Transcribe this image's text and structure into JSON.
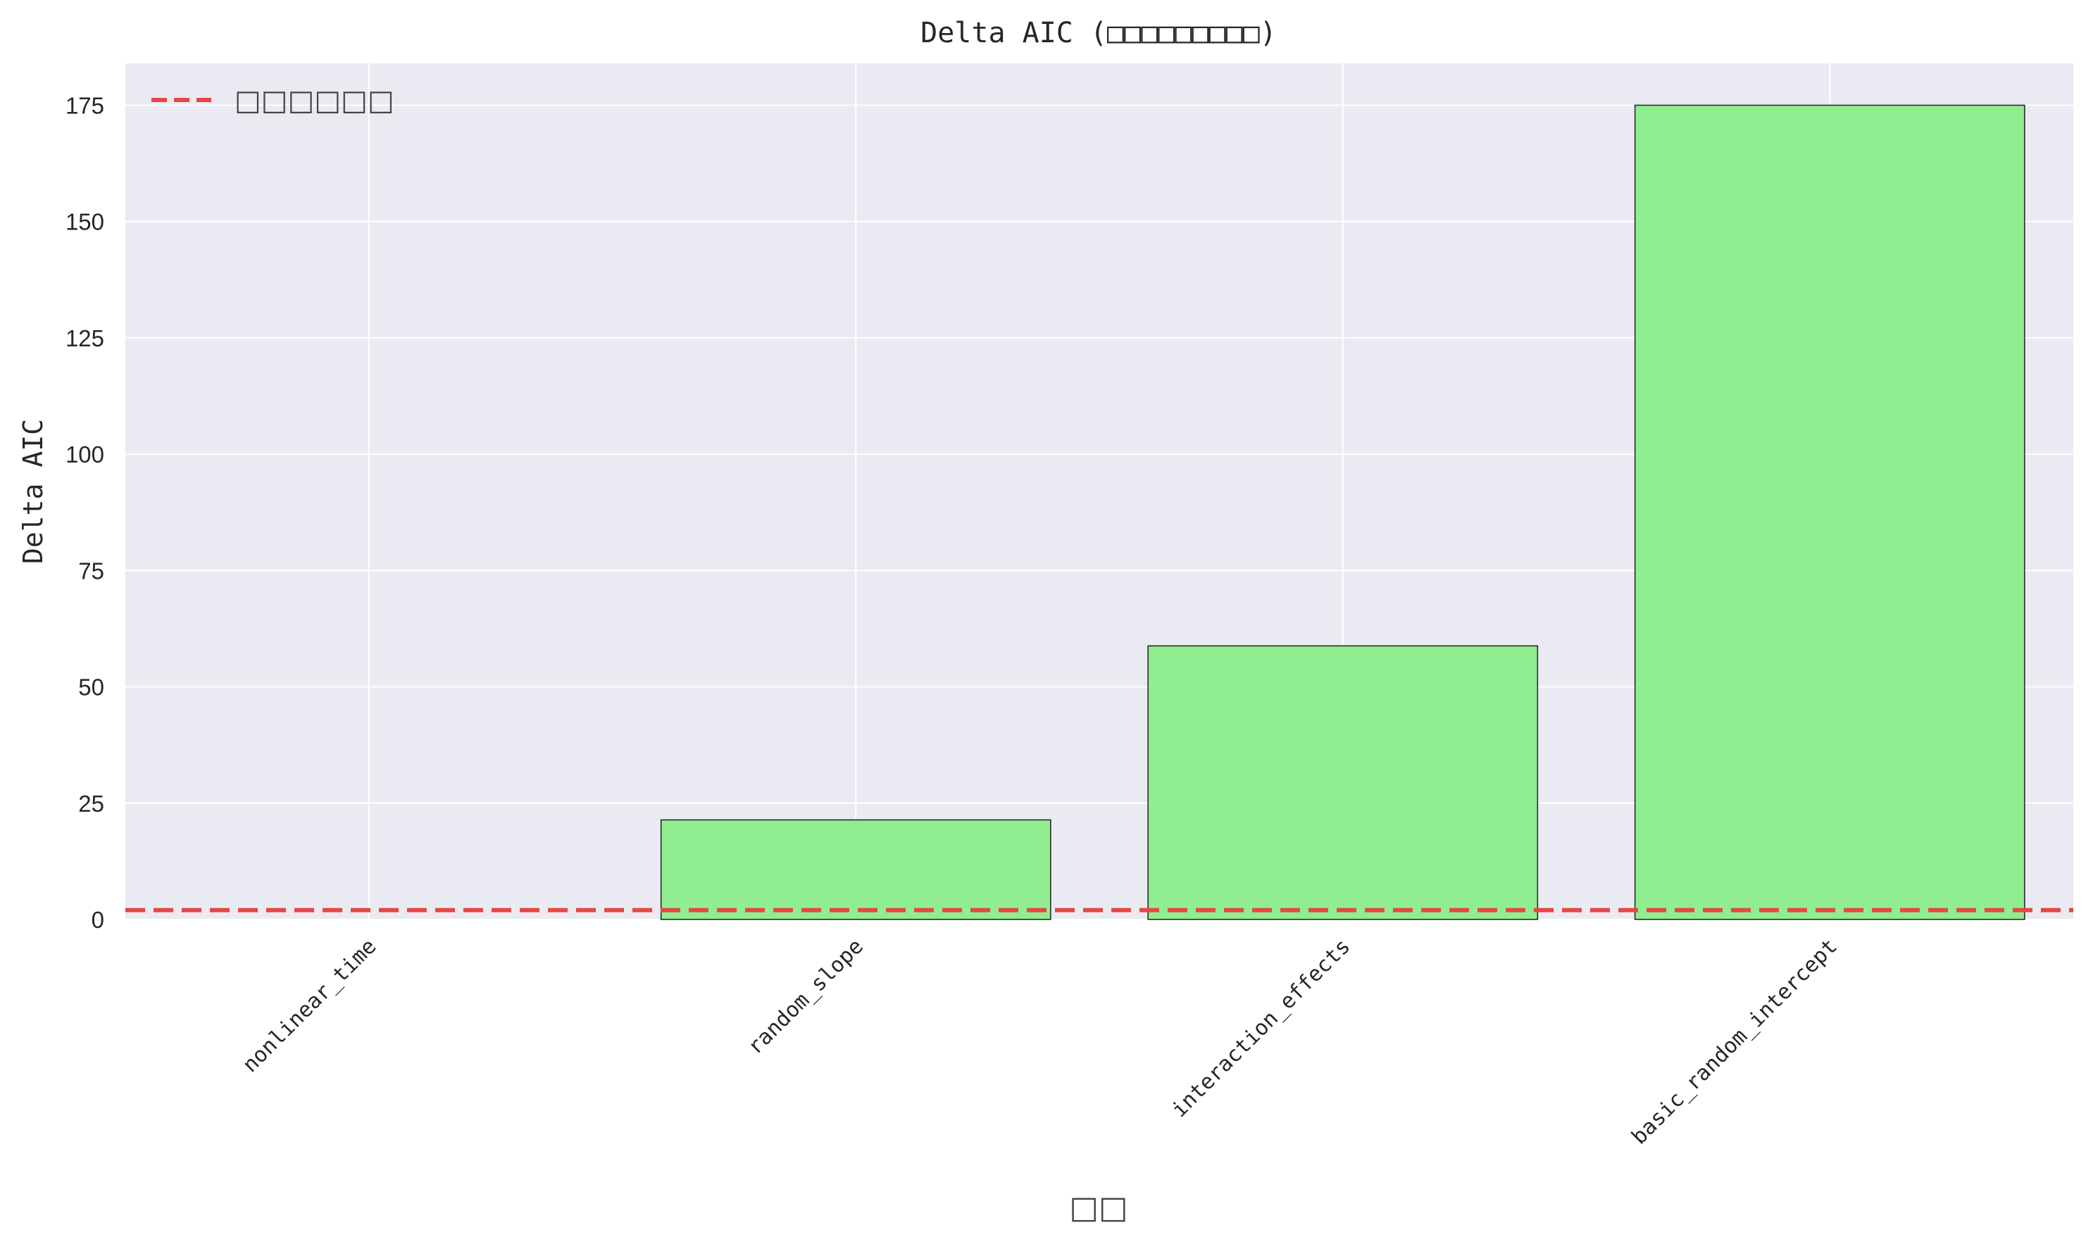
{
  "chart_data": {
    "type": "bar",
    "title": "Delta AIC (□□□□□□□□□)",
    "xlabel": "□□",
    "ylabel": "Delta AIC",
    "categories": [
      "nonlinear_time",
      "random_slope",
      "interaction_effects",
      "basic_random_intercept"
    ],
    "values": [
      0,
      21.4,
      58.8,
      175.0
    ],
    "ylim": [
      0,
      184
    ],
    "yticks": [
      0,
      25,
      50,
      75,
      100,
      125,
      150,
      175
    ],
    "reference_line": {
      "value": 2,
      "style": "dashed",
      "color": "#e84545",
      "label": "□□□□□□"
    },
    "legend_position": "top-left",
    "grid": true,
    "bar_color": "#90ee90",
    "bar_edge_color": "#1f1f1f",
    "plot_background": "#eaeaf2"
  }
}
